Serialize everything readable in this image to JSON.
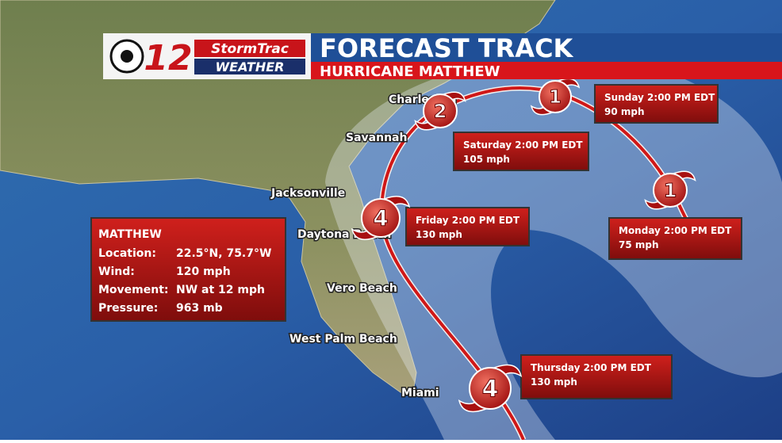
{
  "header": {
    "station": "12",
    "brand_top": "StormTrac",
    "brand_bottom": "WEATHER",
    "title": "FORECAST TRACK",
    "subtitle": "HURRICANE MATTHEW"
  },
  "cities": [
    "Charleston",
    "Savannah",
    "Jacksonville",
    "Daytona Beach",
    "Vero Beach",
    "West Palm Beach",
    "Miami"
  ],
  "forecast_points": [
    {
      "category": 4,
      "time": "Thursday 2:00 PM EDT",
      "wind": "130 mph"
    },
    {
      "category": 4,
      "time": "Friday 2:00 PM EDT",
      "wind": "130 mph"
    },
    {
      "category": 2,
      "time": "Saturday 2:00 PM EDT",
      "wind": "105 mph"
    },
    {
      "category": 1,
      "time": "Sunday 2:00 PM EDT",
      "wind": "90 mph"
    },
    {
      "category": 1,
      "time": "Monday 2:00 PM EDT",
      "wind": "75 mph"
    }
  ],
  "info_box": {
    "name": "MATTHEW",
    "rows": [
      {
        "label": "Location:",
        "value": "22.5°N, 75.7°W"
      },
      {
        "label": "Wind:",
        "value": "120 mph"
      },
      {
        "label": "Movement:",
        "value": "NW at 12 mph"
      },
      {
        "label": "Pressure:",
        "value": "963 mb"
      }
    ]
  }
}
